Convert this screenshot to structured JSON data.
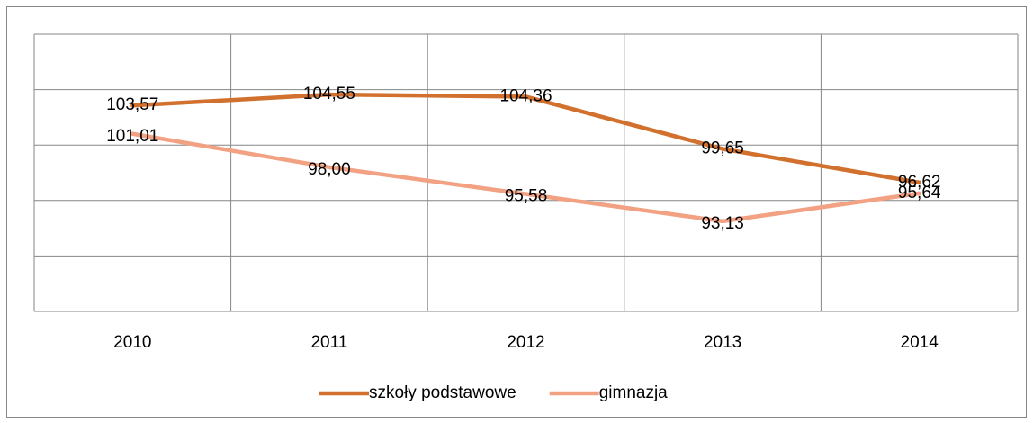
{
  "chart_data": {
    "type": "line",
    "categories": [
      "2010",
      "2011",
      "2012",
      "2013",
      "2014"
    ],
    "series": [
      {
        "name": "szkoły podstawowe",
        "color": "#d2702d",
        "values": [
          103.57,
          104.55,
          104.36,
          99.65,
          96.62
        ],
        "value_labels": [
          "103,57",
          "104,55",
          "104,36",
          "99,65",
          "96,62"
        ]
      },
      {
        "name": "gimnazja",
        "color": "#f2a283",
        "values": [
          101.01,
          98.0,
          95.58,
          93.13,
          95.64
        ],
        "value_labels": [
          "101,01",
          "98,00",
          "95,58",
          "93,13",
          "95,64"
        ]
      }
    ],
    "ylim": [
      85,
      110
    ],
    "yticks": [
      85,
      90,
      95,
      100,
      105,
      110
    ],
    "grid": true,
    "legend": "bottom"
  }
}
